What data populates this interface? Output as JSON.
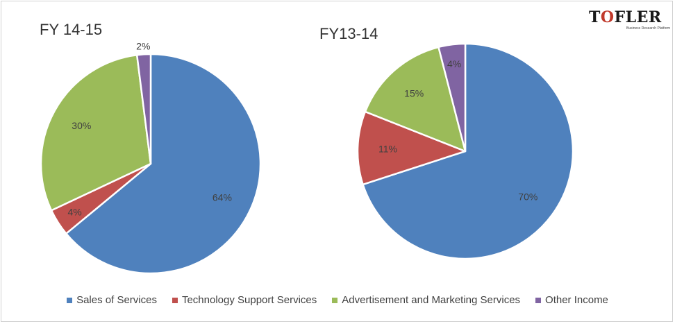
{
  "logo": {
    "text_before": "T",
    "text_o": "O",
    "text_after": "FLER",
    "tagline": "Business Research Platform"
  },
  "colors": {
    "Sales of Services": "#4F81BD",
    "Technology Support Services": "#C0504D",
    "Advertisement and Marketing Services": "#9BBB59",
    "Other Income": "#8064A2"
  },
  "chart_data": [
    {
      "type": "pie",
      "title": "FY 14-15",
      "categories": [
        "Sales of Services",
        "Technology Support Services",
        "Advertisement and Marketing Services",
        "Other Income"
      ],
      "values": [
        64,
        4,
        30,
        2
      ],
      "labels": [
        "64%",
        "4%",
        "30%",
        "2%"
      ],
      "legend_position": "bottom"
    },
    {
      "type": "pie",
      "title": "FY13-14",
      "categories": [
        "Sales of Services",
        "Technology Support Services",
        "Advertisement and Marketing Services",
        "Other Income"
      ],
      "values": [
        70,
        11,
        15,
        4
      ],
      "labels": [
        "70%",
        "11%",
        "15%",
        "4%"
      ],
      "legend_position": "bottom"
    }
  ],
  "legend": [
    {
      "label": "Sales of Services"
    },
    {
      "label": "Technology Support Services"
    },
    {
      "label": "Advertisement and Marketing Services"
    },
    {
      "label": "Other Income"
    }
  ]
}
